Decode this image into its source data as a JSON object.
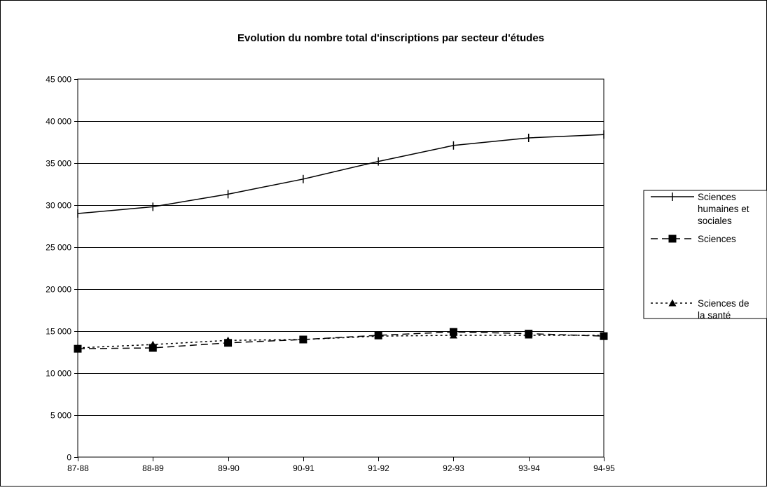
{
  "chart_data": {
    "type": "line",
    "title": "Evolution du nombre total d'inscriptions par secteur d'études",
    "xlabel": "",
    "ylabel": "",
    "categories": [
      "87-88",
      "88-89",
      "89-90",
      "90-91",
      "91-92",
      "92-93",
      "93-94",
      "94-95"
    ],
    "ylim": [
      0,
      45000
    ],
    "yticks": [
      0,
      5000,
      10000,
      15000,
      20000,
      25000,
      30000,
      35000,
      40000,
      45000
    ],
    "ytick_labels": [
      "0",
      "5 000",
      "10 000",
      "15 000",
      "20 000",
      "25 000",
      "30 000",
      "35 000",
      "40 000",
      "45 000"
    ],
    "grid": "horizontal",
    "legend_position": "right",
    "series": [
      {
        "name": "Sciences humaines et sociales",
        "name_lines": [
          "Sciences",
          "humaines et",
          "sociales"
        ],
        "values": [
          29000,
          29800,
          31300,
          33100,
          35200,
          37100,
          38000,
          38400
        ],
        "marker": "plus",
        "line_style": "solid",
        "color": "#000000"
      },
      {
        "name": "Sciences",
        "name_lines": [
          "Sciences"
        ],
        "values": [
          12900,
          13000,
          13600,
          14000,
          14500,
          14900,
          14700,
          14400
        ],
        "marker": "square",
        "line_style": "dashed",
        "color": "#000000"
      },
      {
        "name": "Sciences de la santé",
        "name_lines": [
          "Sciences de",
          "la santé"
        ],
        "values": [
          13000,
          13400,
          13900,
          14000,
          14400,
          14500,
          14500,
          14500
        ],
        "marker": "triangle",
        "line_style": "dotted",
        "color": "#000000"
      }
    ]
  }
}
